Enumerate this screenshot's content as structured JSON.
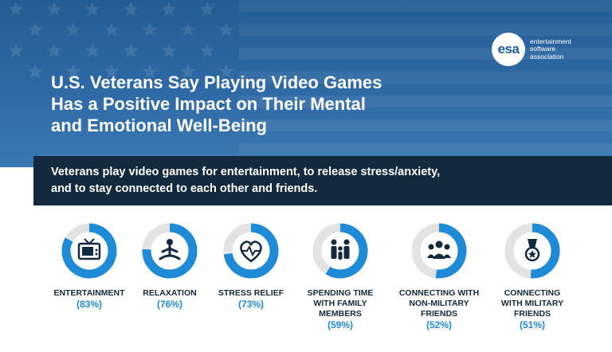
{
  "header": {
    "title_lines": [
      "U.S. Veterans Say Playing Video Games",
      "Has a Positive Impact on Their Mental",
      "and Emotional Well-Being"
    ],
    "logo": {
      "mark": "esa",
      "lines": [
        "entertainment",
        "software",
        "association"
      ]
    }
  },
  "banner": {
    "lines": [
      "Veterans play video games for entertainment, to release stress/anxiety,",
      "and to stay connected to each other and friends."
    ]
  },
  "colors": {
    "accent": "#1f8ad6",
    "track": "#e3e3e3",
    "navy": "#132a3e",
    "hero_blue": "#2f6aa6"
  },
  "chart_data": {
    "type": "donut",
    "unit": "%",
    "max": 100,
    "items": [
      {
        "label_lines": [
          "ENTERTAINMENT"
        ],
        "value": 83,
        "value_text": "(83%)",
        "icon": "tv-icon"
      },
      {
        "label_lines": [
          "RELAXATION"
        ],
        "value": 76,
        "value_text": "(76%)",
        "icon": "meditation-icon"
      },
      {
        "label_lines": [
          "STRESS RELIEF"
        ],
        "value": 73,
        "value_text": "(73%)",
        "icon": "heart-pulse-icon"
      },
      {
        "label_lines": [
          "SPENDING TIME",
          "WITH FAMILY",
          "MEMBERS"
        ],
        "value": 59,
        "value_text": "(59%)",
        "icon": "family-icon"
      },
      {
        "label_lines": [
          "CONNECTING WITH",
          "NON-MILITARY",
          "FRIENDS"
        ],
        "value": 52,
        "value_text": "(52%)",
        "icon": "group-icon"
      },
      {
        "label_lines": [
          "CONNECTING",
          "WITH MILITARY",
          "FRIENDS"
        ],
        "value": 51,
        "value_text": "(51%)",
        "icon": "medal-icon"
      }
    ]
  }
}
